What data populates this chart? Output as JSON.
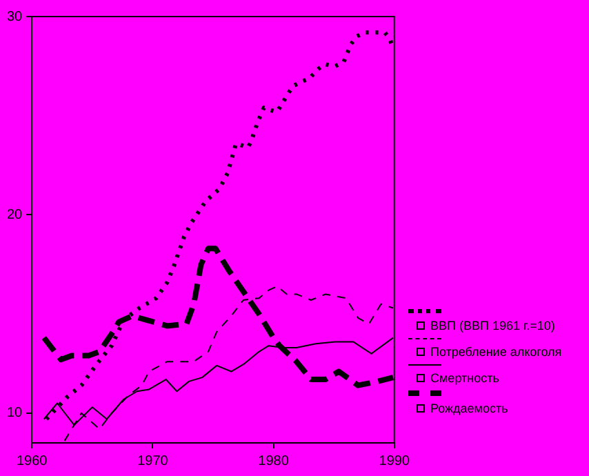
{
  "chart_data": {
    "type": "line",
    "xlim": [
      1960,
      1990
    ],
    "xticks": [
      1960,
      1970,
      1980,
      1990
    ],
    "ylim": [
      8.5,
      30
    ],
    "yticks": [
      10,
      20,
      30
    ],
    "grid": false,
    "legend": "right",
    "marker": "none",
    "series": [
      {
        "name": "ВВП (ВВП 1961 г.=10)",
        "color": "#000000",
        "line_style": "dotted",
        "x": [
          1961.2,
          1962.9,
          1964.1,
          1965.4,
          1966.6,
          1967.6,
          1968.9,
          1970.3,
          1971.2,
          1971.8,
          1972.6,
          1973.2,
          1974.4,
          1975.5,
          1976.2,
          1976.9,
          1977.9,
          1978.2,
          1978.7,
          1979.2,
          1979.6,
          1980.3,
          1980.8,
          1981.2,
          1981.6,
          1983.0,
          1983.6,
          1984.2,
          1985.1,
          1985.8,
          1986.4,
          1986.9,
          1987.5,
          1988.4,
          1989.2,
          1989.6,
          1989.9
        ],
        "values": [
          9.7,
          10.8,
          11.4,
          12.5,
          13.4,
          14.7,
          15.3,
          15.8,
          16.6,
          17.5,
          18.9,
          19.6,
          20.7,
          21.3,
          22.1,
          23.6,
          23.4,
          23.8,
          24.7,
          25.4,
          25.3,
          25.2,
          25.7,
          26.1,
          26.5,
          26.9,
          27.3,
          27.6,
          27.5,
          27.7,
          28.6,
          29.0,
          29.2,
          29.2,
          29.2,
          28.9,
          28.4
        ]
      },
      {
        "name": "Потребление алкоголя",
        "color": "#000000",
        "line_style": "dashed",
        "x": [
          1962.7,
          1964.1,
          1965.6,
          1966.6,
          1968.0,
          1969.1,
          1969.7,
          1971.2,
          1973.4,
          1974.6,
          1975.3,
          1976.5,
          1977.5,
          1978.8,
          1979.6,
          1980.3,
          1981.1,
          1981.9,
          1983.1,
          1984.3,
          1986.0,
          1987.0,
          1987.9,
          1988.9,
          1989.9
        ],
        "values": [
          8.6,
          10.0,
          9.2,
          10.0,
          10.9,
          11.4,
          12.1,
          12.6,
          12.6,
          13.1,
          14.1,
          14.9,
          15.7,
          15.8,
          16.2,
          16.4,
          16.0,
          16.0,
          15.7,
          16.0,
          15.8,
          14.8,
          14.5,
          15.5,
          15.3
        ]
      },
      {
        "name": "Смертность",
        "color": "#000000",
        "line_style": "solid",
        "x": [
          1961.0,
          1962.1,
          1963.5,
          1965.0,
          1966.2,
          1967.6,
          1968.7,
          1969.7,
          1971.1,
          1972.0,
          1973.0,
          1974.1,
          1975.3,
          1976.5,
          1977.6,
          1978.8,
          1979.6,
          1980.8,
          1981.9,
          1983.5,
          1985.1,
          1986.6,
          1988.1,
          1989.9
        ],
        "values": [
          9.7,
          10.5,
          9.4,
          10.3,
          9.7,
          10.7,
          11.1,
          11.2,
          11.7,
          11.1,
          11.6,
          11.8,
          12.4,
          12.1,
          12.5,
          13.1,
          13.4,
          13.3,
          13.3,
          13.5,
          13.6,
          13.6,
          13.0,
          13.8
        ]
      },
      {
        "name": "Рождаемость",
        "color": "#000000",
        "line_style": "dashed",
        "x": [
          1961.0,
          1962.4,
          1963.3,
          1964.7,
          1965.6,
          1966.6,
          1967.2,
          1968.3,
          1969.5,
          1971.2,
          1972.8,
          1973.4,
          1974.0,
          1974.6,
          1975.2,
          1976.3,
          1978.0,
          1978.8,
          1980.0,
          1980.5,
          1981.9,
          1983.1,
          1984.3,
          1985.4,
          1987.0,
          1988.6,
          1989.9
        ],
        "values": [
          13.8,
          12.7,
          12.9,
          12.9,
          13.1,
          14.0,
          14.6,
          14.9,
          14.7,
          14.4,
          14.5,
          15.5,
          17.5,
          18.3,
          18.3,
          17.2,
          15.7,
          15.0,
          13.8,
          13.4,
          12.6,
          11.7,
          11.7,
          12.1,
          11.4,
          11.6,
          11.8
        ]
      }
    ]
  }
}
